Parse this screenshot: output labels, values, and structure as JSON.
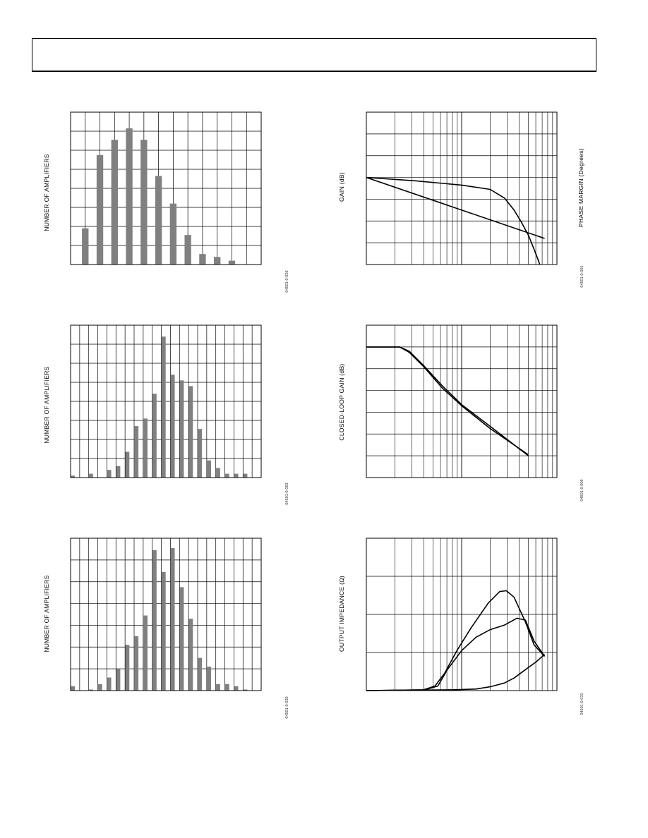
{
  "page": {
    "header_text": ""
  },
  "figures": [
    {
      "id": "fig-hist-1",
      "ylabel": "NUMBER OF AMPLIFIERS",
      "code": "04501-0-026"
    },
    {
      "id": "fig-hist-2",
      "ylabel": "NUMBER OF AMPLIFIERS",
      "code": "04501-0-053"
    },
    {
      "id": "fig-hist-3",
      "ylabel": "NUMBER OF AMPLIFIERS",
      "code": "04501-0-030"
    },
    {
      "id": "fig-gain-phase",
      "ylabel": "GAIN (dB)",
      "ylabel_right": "PHASE MARGIN (Degrees)",
      "code": "04501-0-001"
    },
    {
      "id": "fig-closed-loop",
      "ylabel": "CLOSED-LOOP GAIN (dB)",
      "code": "04501-0-009"
    },
    {
      "id": "fig-zout",
      "ylabel": "OUTPUT IMPEDANCE (Ω)",
      "code": "04501-0-031"
    }
  ],
  "chart_data": [
    {
      "type": "bar",
      "title": "",
      "ylabel": "NUMBER OF AMPLIFIERS",
      "grid": true,
      "ylim": [
        0,
        8
      ],
      "xlim": [
        0,
        13
      ],
      "x": [
        1,
        2,
        3,
        4,
        5,
        6,
        7,
        8,
        9,
        10,
        11
      ],
      "values": [
        1.9,
        5.75,
        6.55,
        7.15,
        6.55,
        4.65,
        3.2,
        1.55,
        0.55,
        0.4,
        0.2
      ]
    },
    {
      "type": "bar",
      "title": "",
      "ylabel": "NUMBER OF AMPLIFIERS",
      "grid": true,
      "ylim": [
        0,
        8
      ],
      "xlim": [
        0,
        21
      ],
      "x": [
        0.25,
        2.25,
        4.25,
        5.25,
        6.25,
        7.25,
        8.25,
        9.25,
        10.25,
        11.25,
        12.25,
        13.25,
        14.25,
        15.25,
        16.25,
        17.25,
        18.25,
        19.25
      ],
      "values": [
        0.1,
        0.2,
        0.4,
        0.6,
        1.35,
        2.7,
        3.1,
        4.4,
        7.4,
        5.4,
        5.1,
        4.8,
        2.55,
        0.9,
        0.5,
        0.2,
        0.2,
        0.2
      ]
    },
    {
      "type": "bar",
      "title": "",
      "ylabel": "NUMBER OF AMPLIFIERS",
      "grid": true,
      "ylim": [
        0,
        7
      ],
      "xlim": [
        0,
        21
      ],
      "x": [
        0.25,
        2.25,
        3.25,
        4.25,
        5.25,
        6.25,
        7.25,
        8.25,
        9.25,
        10.25,
        11.25,
        12.25,
        13.25,
        14.25,
        15.25,
        16.25,
        17.25,
        18.25,
        19.25
      ],
      "values": [
        0.2,
        0.05,
        0.3,
        0.6,
        1.0,
        2.1,
        2.5,
        3.45,
        6.45,
        5.45,
        6.55,
        4.75,
        3.3,
        1.5,
        1.1,
        0.3,
        0.3,
        0.2,
        0.05
      ]
    },
    {
      "type": "line",
      "title": "",
      "ylabel": "GAIN (dB)",
      "ylabel_right": "PHASE MARGIN (Degrees)",
      "xscale": "log",
      "xlim": [
        0,
        2
      ],
      "ylim": [
        0,
        7
      ],
      "grid": true,
      "series": [
        {
          "x": [
            0,
            0.5,
            1.0,
            1.3,
            1.45,
            1.55,
            1.62,
            1.7,
            1.76,
            1.8,
            1.82
          ],
          "values": [
            4.0,
            3.85,
            3.65,
            3.45,
            3.05,
            2.5,
            2.0,
            1.35,
            0.7,
            0.25,
            0.0
          ]
        },
        {
          "x": [
            0,
            1.87
          ],
          "values": [
            4.0,
            1.2
          ]
        }
      ]
    },
    {
      "type": "line",
      "title": "",
      "ylabel": "CLOSED-LOOP GAIN (dB)",
      "xscale": "log",
      "xlim": [
        0,
        2
      ],
      "ylim": [
        0,
        7
      ],
      "grid": true,
      "series": [
        {
          "x": [
            0,
            0.35,
            0.45,
            0.6,
            0.8,
            1.0,
            1.3,
            1.7
          ],
          "values": [
            6.0,
            6.0,
            5.8,
            5.15,
            4.2,
            3.35,
            2.35,
            1.0
          ]
        },
        {
          "x": [
            0,
            0.35,
            0.45,
            0.6,
            0.8,
            1.0,
            1.3,
            1.7
          ],
          "values": [
            6.0,
            6.0,
            5.75,
            5.1,
            4.1,
            3.3,
            2.25,
            1.05
          ]
        }
      ]
    },
    {
      "type": "line",
      "title": "",
      "ylabel": "OUTPUT IMPEDANCE (Ω)",
      "xscale": "log",
      "xlim": [
        0,
        2
      ],
      "ylim": [
        0,
        4
      ],
      "grid": true,
      "series": [
        {
          "x": [
            0,
            0.6,
            0.72,
            0.82,
            0.95,
            1.1,
            1.28,
            1.4,
            1.47,
            1.55,
            1.67,
            1.76,
            1.87
          ],
          "values": [
            0,
            0.02,
            0.12,
            0.45,
            1.05,
            1.65,
            2.3,
            2.6,
            2.62,
            2.45,
            1.8,
            1.2,
            0.9
          ]
        },
        {
          "x": [
            0,
            0.62,
            0.75,
            0.85,
            1.0,
            1.15,
            1.3,
            1.45,
            1.58,
            1.67,
            1.76,
            1.87
          ],
          "values": [
            0,
            0.02,
            0.12,
            0.55,
            1.05,
            1.4,
            1.6,
            1.72,
            1.9,
            1.85,
            1.3,
            0.9
          ]
        },
        {
          "x": [
            0,
            0.9,
            1.15,
            1.3,
            1.45,
            1.55,
            1.67,
            1.78,
            1.87
          ],
          "values": [
            0,
            0.02,
            0.04,
            0.1,
            0.2,
            0.33,
            0.55,
            0.75,
            0.95
          ]
        }
      ]
    }
  ]
}
